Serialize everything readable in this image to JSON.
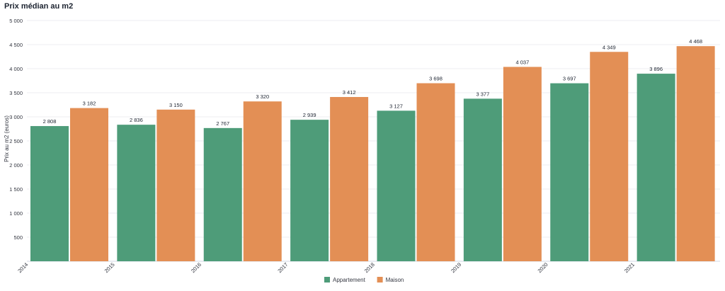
{
  "chart_data": {
    "type": "bar",
    "title": "Prix médian au m2",
    "ylabel": "Prix au m2 (euros)",
    "xlabel": "",
    "categories": [
      "2014",
      "2015",
      "2016",
      "2017",
      "2018",
      "2019",
      "2020",
      "2021"
    ],
    "ylim": [
      0,
      5000
    ],
    "yticks": [
      500,
      1000,
      1500,
      2000,
      2500,
      3000,
      3500,
      4000,
      4500,
      5000
    ],
    "ytick_labels": [
      "500",
      "1 000",
      "1 500",
      "2 000",
      "2 500",
      "3 000",
      "3 500",
      "4 000",
      "4 500",
      "5 000"
    ],
    "grid": true,
    "legend_position": "bottom-center",
    "series": [
      {
        "name": "Appartement",
        "color": "#4e9c79",
        "values": [
          2808,
          2836,
          2767,
          2939,
          3127,
          3377,
          3697,
          3896
        ],
        "labels": [
          "2 808",
          "2 836",
          "2 767",
          "2 939",
          "3 127",
          "3 377",
          "3 697",
          "3 896"
        ]
      },
      {
        "name": "Maison",
        "color": "#e38f55",
        "values": [
          3182,
          3150,
          3320,
          3412,
          3698,
          4037,
          4349,
          4468
        ],
        "labels": [
          "3 182",
          "3 150",
          "3 320",
          "3 412",
          "3 698",
          "4 037",
          "4 349",
          "4 468"
        ]
      }
    ]
  }
}
